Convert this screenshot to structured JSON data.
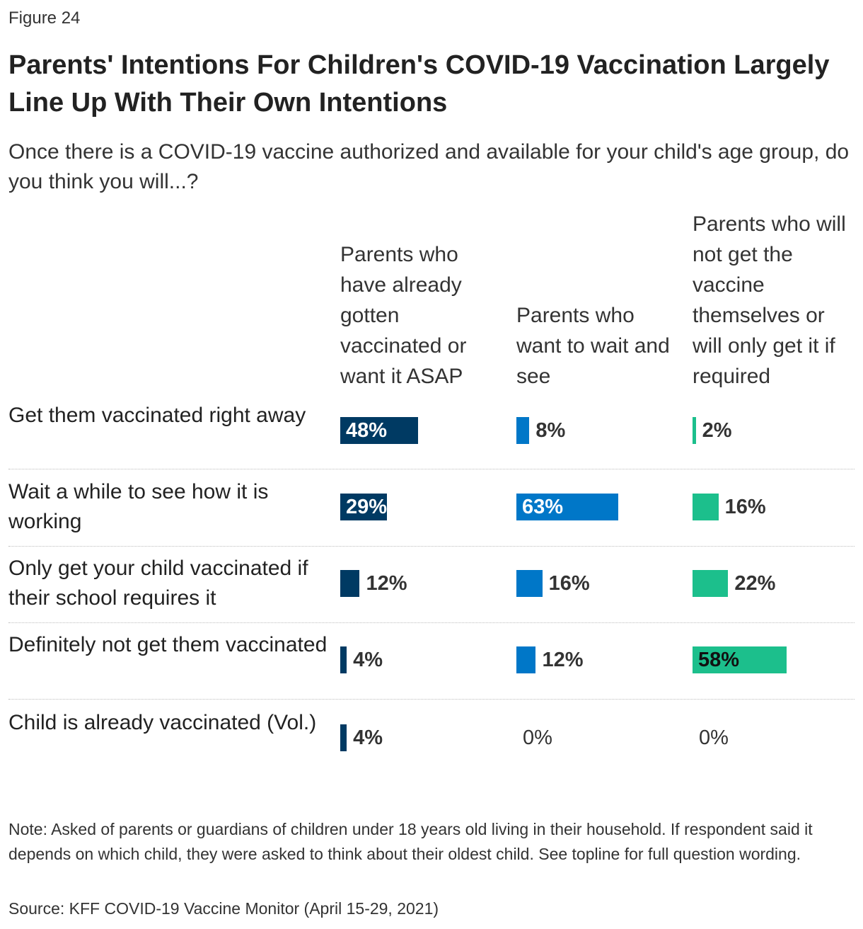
{
  "figure_label": "Figure 24",
  "colors": {
    "series": [
      "#003a63",
      "#0077c8",
      "#1cbf8c"
    ],
    "divider": "#bdbdbd",
    "text": "#222222"
  },
  "chart_data": {
    "type": "bar",
    "orientation": "horizontal",
    "layout": "small-multiples",
    "title": "Parents' Intentions For Children's COVID-19 Vaccination Largely Line Up With Their Own Intentions",
    "subtitle": "Once there is a COVID-19 vaccine authorized and available for your child's age group, do you think you will...?",
    "categories": [
      "Get them vaccinated right away",
      "Wait a while to see how it is working",
      "Only get your child vaccinated if their school requires it",
      "Definitely not get them vaccinated",
      "Child is already vaccinated (Vol.)"
    ],
    "unit": "%",
    "xlim": [
      0,
      100
    ],
    "grid": false,
    "legend": "none",
    "series": [
      {
        "name": "Parents who have already gotten vaccinated or want it ASAP",
        "color": "#003a63",
        "values": [
          48,
          29,
          12,
          4,
          4
        ],
        "labels": [
          "48%",
          "29%",
          "12%",
          "4%",
          "4%"
        ]
      },
      {
        "name": "Parents who want to wait and see",
        "color": "#0077c8",
        "values": [
          8,
          63,
          16,
          12,
          0
        ],
        "labels": [
          "8%",
          "63%",
          "16%",
          "12%",
          "0%"
        ]
      },
      {
        "name": "Parents who will not get the vaccine themselves or will only get it if required",
        "color": "#1cbf8c",
        "values": [
          2,
          16,
          22,
          58,
          0
        ],
        "labels": [
          "2%",
          "16%",
          "22%",
          "58%",
          "0%"
        ]
      }
    ]
  },
  "note": "Note: Asked of parents or guardians of children under 18 years old living in their household. If respondent said it depends on which child, they were asked to think about their oldest child. See topline for full question wording.",
  "source": "Source: KFF COVID-19 Vaccine Monitor (April 15-29, 2021)"
}
